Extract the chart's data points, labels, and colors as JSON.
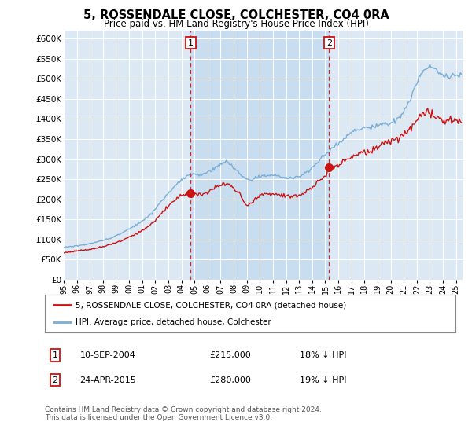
{
  "title": "5, ROSSENDALE CLOSE, COLCHESTER, CO4 0RA",
  "subtitle": "Price paid vs. HM Land Registry's House Price Index (HPI)",
  "hpi_color": "#7aadd4",
  "price_color": "#cc1111",
  "bg_color": "#dce9f5",
  "shade_color": "#c8ddf0",
  "vline_color": "#dd2222",
  "purchase1_date": "10-SEP-2004",
  "purchase1_price": 215000,
  "purchase2_date": "24-APR-2015",
  "purchase2_price": 280000,
  "purchase1_hpi_pct": "18% ↓ HPI",
  "purchase2_hpi_pct": "19% ↓ HPI",
  "legend_label_price": "5, ROSSENDALE CLOSE, COLCHESTER, CO4 0RA (detached house)",
  "legend_label_hpi": "HPI: Average price, detached house, Colchester",
  "footer": "Contains HM Land Registry data © Crown copyright and database right 2024.\nThis data is licensed under the Open Government Licence v3.0.",
  "ylim": [
    0,
    620000
  ],
  "yticks": [
    0,
    50000,
    100000,
    150000,
    200000,
    250000,
    300000,
    350000,
    400000,
    450000,
    500000,
    550000,
    600000
  ],
  "xlim_start": 1995.0,
  "xlim_end": 2025.5,
  "purchase1_x": 2004.71,
  "purchase2_x": 2015.29
}
